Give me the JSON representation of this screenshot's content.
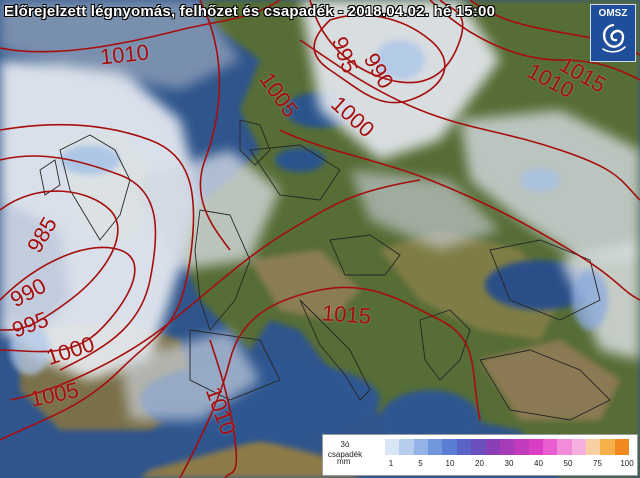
{
  "title": "Előrejelzett légnyomás, felhőzet és csapadék - 2018.04.02. hé 15:00",
  "logo": {
    "text": "OMSZ",
    "icon": "omsz-swirl-icon"
  },
  "isobar_labels": [
    "1010",
    "995",
    "990",
    "1015",
    "1010",
    "1000",
    "1005",
    "985",
    "990",
    "995",
    "1000",
    "1005",
    "1015",
    "1010"
  ],
  "legend": {
    "title": "3ó csapadék",
    "unit": "mm",
    "ticks": [
      "1",
      "5",
      "10",
      "20",
      "30",
      "40",
      "50",
      "75",
      "100"
    ],
    "colors": [
      "#d8e6f6",
      "#b7cdee",
      "#93b3e6",
      "#7097dc",
      "#5a7ed4",
      "#5a64c8",
      "#6c4fbd",
      "#8a3fb7",
      "#a73cb8",
      "#c23bbd",
      "#d93fc4",
      "#e85dcf",
      "#f28bd8",
      "#f6b0e0",
      "#f7cfa0",
      "#f5b04a",
      "#f08a1e"
    ]
  },
  "colors": {
    "isobar": "#a60d0d",
    "sea": "#2b4f86",
    "land_low": "#4c6a2a",
    "land_high": "#8a7a4a",
    "cloud": "#e8ecf2"
  }
}
